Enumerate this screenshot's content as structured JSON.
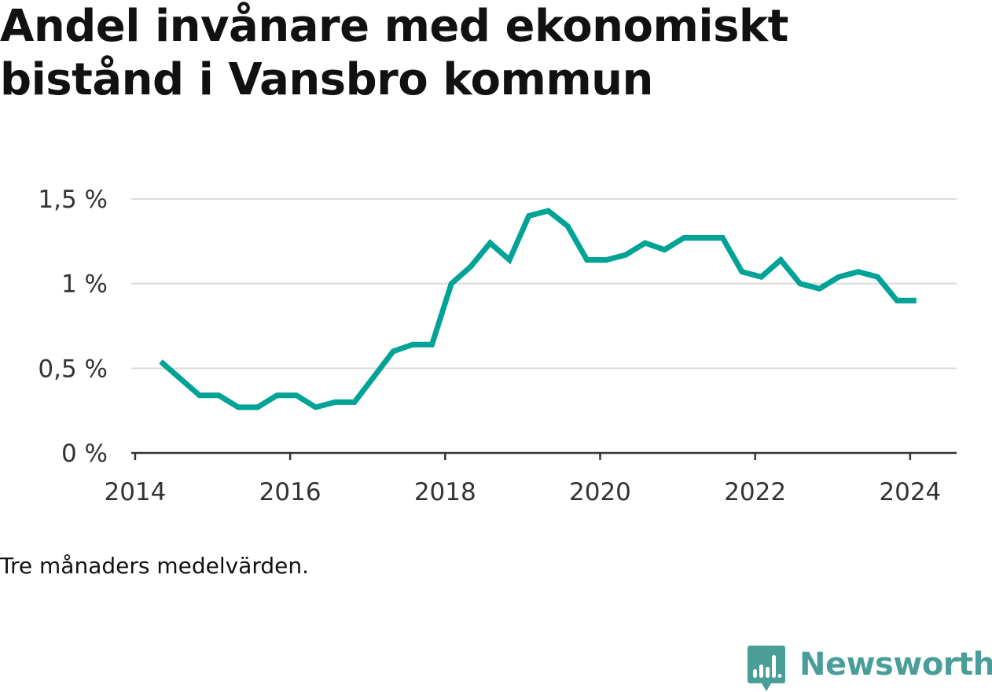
{
  "header": {
    "title_line1": "Andel invånare med ekonomiskt",
    "title_line2": "bistånd i Vansbro kommun"
  },
  "note": "Tre månaders medelvärden.",
  "brand": {
    "name": "Newsworthy",
    "icon": "newsworthy-logo-icon",
    "color": "#4a9e98"
  },
  "chart_data": {
    "type": "line",
    "title": "Andel invånare med ekonomiskt bistånd i Vansbro kommun",
    "xlabel": "",
    "ylabel": "",
    "x_ticks": [
      2014,
      2016,
      2018,
      2020,
      2022,
      2024
    ],
    "y_ticks": [
      0,
      0.5,
      1,
      1.5
    ],
    "y_tick_labels": [
      "0 %",
      "0,5 %",
      "1 %",
      "1,5 %"
    ],
    "xlim": [
      2013.95,
      2024.6
    ],
    "ylim": [
      0,
      1.5
    ],
    "grid": true,
    "line_color": "#00a396",
    "series": [
      {
        "x": [
          2014.33,
          2014.58,
          2014.83,
          2015.08,
          2015.33,
          2015.58,
          2015.83,
          2016.08,
          2016.33,
          2016.58,
          2016.83,
          2017.08,
          2017.33,
          2017.58,
          2017.83,
          2018.08,
          2018.33,
          2018.58,
          2018.83,
          2019.08,
          2019.33,
          2019.58,
          2019.83,
          2020.08,
          2020.33,
          2020.58,
          2020.83,
          2021.08,
          2021.33,
          2021.58,
          2021.83,
          2022.08,
          2022.33,
          2022.58,
          2022.83,
          2023.08,
          2023.33,
          2023.58,
          2023.83,
          2024.08
        ],
        "values": [
          0.54,
          0.44,
          0.34,
          0.34,
          0.27,
          0.27,
          0.34,
          0.34,
          0.27,
          0.3,
          0.3,
          0.45,
          0.6,
          0.64,
          0.64,
          1.0,
          1.1,
          1.24,
          1.14,
          1.4,
          1.43,
          1.34,
          1.14,
          1.14,
          1.17,
          1.24,
          1.2,
          1.27,
          1.27,
          1.27,
          1.07,
          1.04,
          1.14,
          1.0,
          0.97,
          1.04,
          1.07,
          1.04,
          0.9,
          0.9
        ]
      }
    ]
  }
}
